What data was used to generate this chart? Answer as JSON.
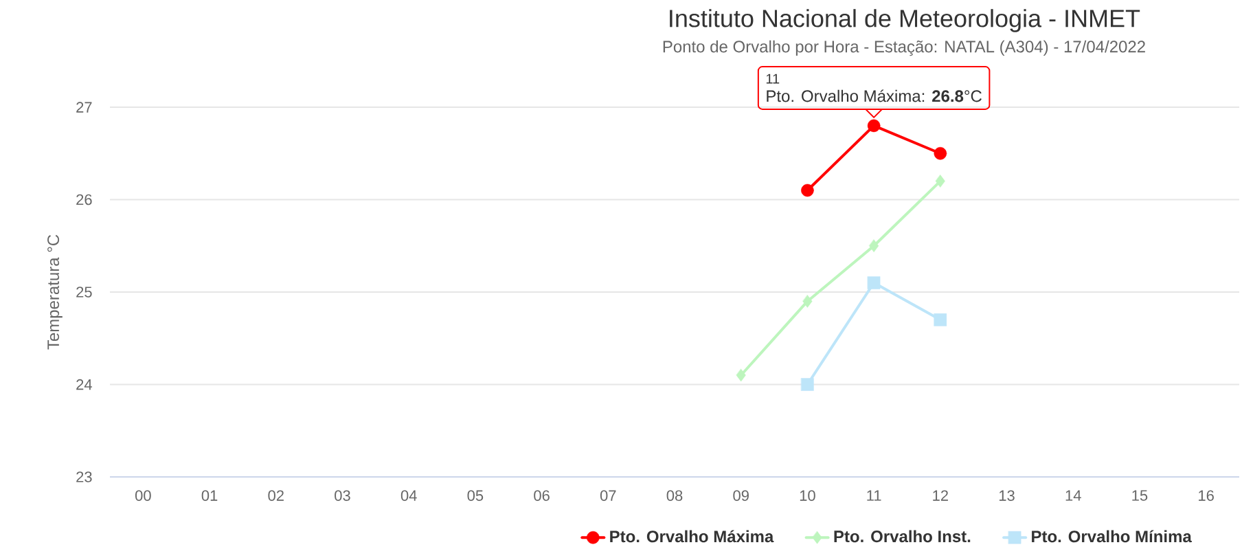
{
  "chart_data": {
    "type": "line",
    "title": "Instituto Nacional de Meteorologia - INMET",
    "subtitle": "Ponto de Orvalho por Hora - Estação: NATAL (A304) - 17/04/2022",
    "ylabel": "Temperatura °C",
    "categories": [
      "00",
      "01",
      "02",
      "03",
      "04",
      "05",
      "06",
      "07",
      "08",
      "09",
      "10",
      "11",
      "12",
      "13",
      "14",
      "15",
      "16"
    ],
    "series": [
      {
        "name": "Pto. Orvalho Máxima",
        "color": "#ff0000",
        "marker": "circle",
        "values": [
          null,
          null,
          null,
          null,
          null,
          null,
          null,
          null,
          null,
          null,
          26.1,
          26.8,
          26.5,
          null,
          null,
          null,
          null
        ]
      },
      {
        "name": "Pto. Orvalho Inst.",
        "color": "#bdf5bd",
        "marker": "diamond",
        "values": [
          null,
          null,
          null,
          null,
          null,
          null,
          null,
          null,
          null,
          24.1,
          24.9,
          25.5,
          26.2,
          null,
          null,
          null,
          null
        ]
      },
      {
        "name": "Pto. Orvalho Mínima",
        "color": "#bde5f9",
        "marker": "square",
        "values": [
          null,
          null,
          null,
          null,
          null,
          null,
          null,
          null,
          null,
          null,
          24.0,
          25.1,
          24.7,
          null,
          null,
          null,
          null
        ]
      }
    ],
    "ylim": [
      23,
      27
    ],
    "yticks": [
      23,
      24,
      25,
      26,
      27
    ],
    "grid": "y",
    "legend": "bottom",
    "annotations": [
      "11",
      {
        "text": "Pto. Orvalho Máxima: **26.8**°C",
        "x": "11",
        "y": 26.8
      }
    ]
  }
}
